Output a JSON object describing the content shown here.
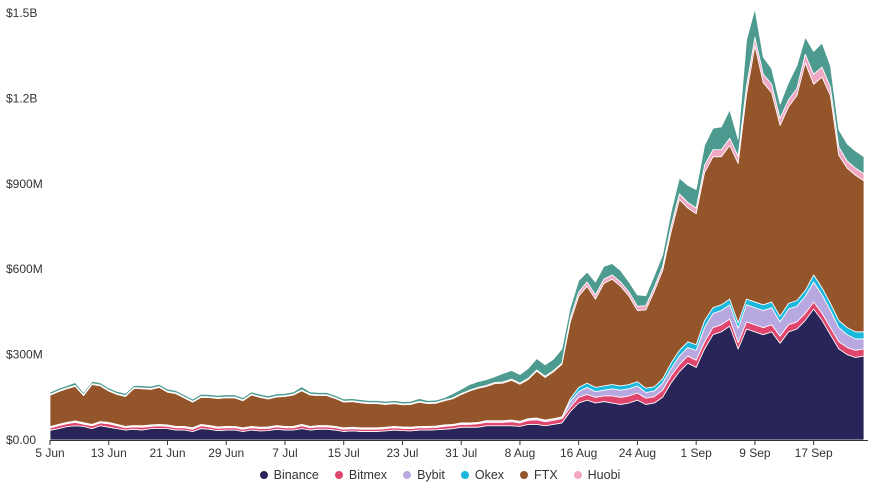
{
  "chart_data": {
    "type": "area",
    "stacked": true,
    "title": "",
    "xlabel": "",
    "ylabel": "",
    "ylim": [
      0,
      1500000000
    ],
    "y_ticks": [
      {
        "value": 0,
        "label": "$0.00"
      },
      {
        "value": 300000000,
        "label": "$300M"
      },
      {
        "value": 600000000,
        "label": "$600M"
      },
      {
        "value": 900000000,
        "label": "$900M"
      },
      {
        "value": 1200000000,
        "label": "$1.2B"
      },
      {
        "value": 1500000000,
        "label": "$1.5B"
      }
    ],
    "x_start": "2020-06-05",
    "x_ticks": [
      "5 Jun",
      "13 Jun",
      "21 Jun",
      "29 Jun",
      "7 Jul",
      "15 Jul",
      "23 Jul",
      "31 Jul",
      "8 Aug",
      "16 Aug",
      "24 Aug",
      "1 Sep",
      "9 Sep",
      "17 Sep"
    ],
    "grid": false,
    "legend_position": "bottom",
    "series": [
      {
        "name": "Binance",
        "color": "#2a2558",
        "values": [
          34,
          40,
          47,
          50,
          48,
          40,
          50,
          45,
          40,
          35,
          38,
          35,
          40,
          40,
          40,
          35,
          35,
          30,
          40,
          38,
          33,
          35,
          35,
          30,
          35,
          32,
          33,
          38,
          35,
          35,
          40,
          35,
          38,
          38,
          35,
          30,
          32,
          30,
          30,
          30,
          32,
          35,
          33,
          32,
          35,
          35,
          36,
          38,
          40,
          45,
          45,
          45,
          50,
          50,
          50,
          50,
          48,
          55,
          55,
          50,
          55,
          60,
          100,
          130,
          140,
          130,
          135,
          130,
          125,
          130,
          140,
          125,
          130,
          150,
          200,
          240,
          270,
          255,
          320,
          370,
          380,
          400,
          320,
          390,
          380,
          370,
          380,
          340,
          380,
          390,
          420,
          460,
          420,
          370,
          320,
          300,
          290,
          295
        ]
      },
      {
        "name": "Bitmex",
        "color": "#e0456e",
        "values": [
          8,
          10,
          10,
          12,
          8,
          10,
          10,
          12,
          10,
          8,
          8,
          10,
          8,
          10,
          8,
          8,
          8,
          8,
          10,
          8,
          8,
          8,
          8,
          8,
          8,
          8,
          8,
          8,
          8,
          8,
          10,
          8,
          8,
          8,
          8,
          8,
          8,
          8,
          8,
          8,
          8,
          8,
          8,
          8,
          8,
          8,
          8,
          10,
          10,
          10,
          10,
          12,
          12,
          12,
          12,
          14,
          12,
          14,
          16,
          14,
          14,
          15,
          15,
          20,
          20,
          20,
          20,
          25,
          25,
          25,
          25,
          22,
          22,
          25,
          25,
          25,
          25,
          25,
          25,
          25,
          25,
          25,
          22,
          25,
          25,
          25,
          25,
          25,
          25,
          25,
          25,
          25,
          25,
          25,
          25,
          25,
          25,
          25
        ]
      },
      {
        "name": "Bybit",
        "color": "#b8a8e0",
        "values": [
          3,
          3,
          3,
          3,
          3,
          3,
          3,
          3,
          3,
          3,
          3,
          3,
          3,
          3,
          3,
          3,
          3,
          3,
          3,
          3,
          3,
          3,
          3,
          3,
          3,
          3,
          3,
          3,
          3,
          3,
          3,
          3,
          3,
          3,
          3,
          3,
          3,
          3,
          3,
          3,
          3,
          3,
          3,
          3,
          3,
          3,
          3,
          3,
          3,
          3,
          3,
          3,
          4,
          4,
          4,
          4,
          4,
          4,
          4,
          4,
          4,
          4,
          20,
          20,
          25,
          20,
          20,
          25,
          25,
          25,
          25,
          20,
          20,
          25,
          25,
          30,
          30,
          35,
          50,
          50,
          50,
          50,
          50,
          60,
          60,
          60,
          60,
          50,
          55,
          55,
          60,
          70,
          65,
          60,
          50,
          45,
          40,
          35
        ]
      },
      {
        "name": "Okex",
        "color": "#1ab8dc",
        "values": [
          2,
          2,
          2,
          2,
          2,
          2,
          2,
          2,
          2,
          2,
          2,
          2,
          2,
          2,
          2,
          2,
          2,
          2,
          2,
          2,
          2,
          2,
          2,
          2,
          2,
          2,
          2,
          2,
          2,
          2,
          2,
          2,
          2,
          2,
          2,
          2,
          2,
          2,
          2,
          2,
          2,
          2,
          2,
          2,
          2,
          2,
          2,
          2,
          2,
          2,
          2,
          2,
          2,
          2,
          2,
          2,
          2,
          2,
          2,
          2,
          2,
          2,
          10,
          15,
          15,
          15,
          15,
          15,
          15,
          15,
          15,
          15,
          15,
          15,
          20,
          20,
          20,
          20,
          25,
          20,
          20,
          20,
          20,
          20,
          20,
          20,
          20,
          20,
          20,
          20,
          20,
          25,
          25,
          25,
          25,
          25,
          25,
          25
        ]
      },
      {
        "name": "FTX",
        "color": "#94552a",
        "values": [
          110,
          115,
          118,
          122,
          95,
          140,
          125,
          110,
          105,
          105,
          130,
          130,
          125,
          130,
          115,
          115,
          100,
          90,
          95,
          98,
          100,
          100,
          100,
          95,
          110,
          105,
          98,
          100,
          105,
          110,
          118,
          110,
          105,
          105,
          98,
          90,
          90,
          88,
          85,
          85,
          80,
          80,
          78,
          80,
          85,
          80,
          80,
          85,
          90,
          100,
          112,
          120,
          120,
          130,
          132,
          140,
          130,
          138,
          165,
          150,
          165,
          185,
          270,
          320,
          340,
          310,
          360,
          370,
          350,
          310,
          250,
          275,
          335,
          380,
          460,
          530,
          470,
          460,
          520,
          530,
          520,
          540,
          560,
          720,
          900,
          780,
          735,
          670,
          690,
          720,
          800,
          670,
          740,
          730,
          580,
          560,
          550,
          530
        ]
      },
      {
        "name": "Huobi",
        "color": "#f0a8c4",
        "values": [
          3,
          3,
          3,
          3,
          3,
          3,
          3,
          3,
          3,
          3,
          3,
          3,
          3,
          3,
          3,
          3,
          3,
          3,
          3,
          3,
          3,
          3,
          3,
          3,
          3,
          3,
          3,
          3,
          3,
          3,
          3,
          3,
          3,
          3,
          3,
          3,
          3,
          3,
          3,
          3,
          3,
          3,
          3,
          3,
          3,
          3,
          3,
          3,
          3,
          3,
          3,
          3,
          4,
          4,
          4,
          4,
          4,
          4,
          4,
          4,
          4,
          4,
          15,
          15,
          15,
          15,
          15,
          15,
          15,
          15,
          15,
          15,
          15,
          15,
          20,
          20,
          20,
          20,
          25,
          25,
          25,
          25,
          25,
          30,
          30,
          30,
          30,
          25,
          25,
          25,
          30,
          35,
          35,
          30,
          30,
          25,
          25,
          25
        ]
      },
      {
        "name": "",
        "color": "#4d9b90",
        "values": [
          8,
          8,
          8,
          10,
          8,
          8,
          8,
          8,
          8,
          8,
          8,
          8,
          8,
          8,
          8,
          8,
          8,
          8,
          8,
          8,
          8,
          8,
          8,
          8,
          8,
          8,
          8,
          8,
          8,
          8,
          12,
          8,
          8,
          8,
          8,
          8,
          8,
          8,
          8,
          8,
          8,
          8,
          8,
          8,
          10,
          8,
          8,
          8,
          15,
          15,
          20,
          20,
          20,
          20,
          30,
          30,
          30,
          35,
          40,
          40,
          40,
          50,
          35,
          40,
          35,
          45,
          45,
          40,
          40,
          35,
          40,
          35,
          40,
          40,
          50,
          55,
          60,
          65,
          70,
          75,
          80,
          100,
          60,
          160,
          100,
          60,
          55,
          50,
          60,
          80,
          60,
          80,
          85,
          75,
          60,
          60,
          60,
          60
        ]
      }
    ]
  }
}
